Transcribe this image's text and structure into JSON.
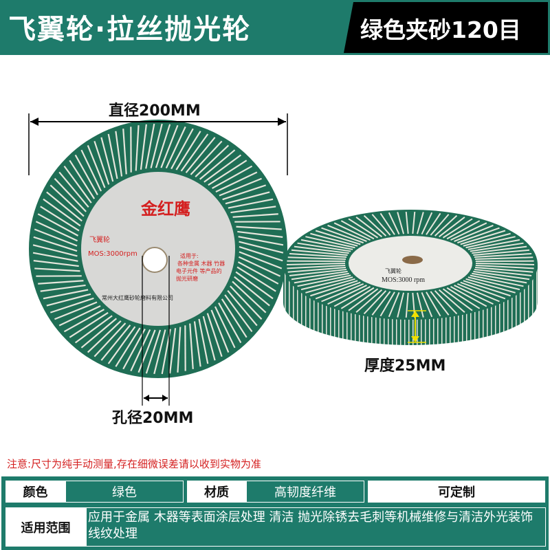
{
  "header": {
    "title": "飞翼轮·拉丝抛光轮",
    "tag": "绿色夹砂120目"
  },
  "dimensions": {
    "diameter": "直径200MM",
    "bore": "孔径20MM",
    "thickness": "厚度25MM"
  },
  "wheel_label": {
    "brand": "金红鹰",
    "name": "飞翼轮",
    "speed": "MOS:3000rpm",
    "usage": [
      "适用于:",
      "各种金属 木器 竹器",
      "电子元件 等产品的",
      "抛光研磨"
    ],
    "company": "常州大红鹰砂轮磨料有限公司"
  },
  "side_label": {
    "name": "飞翼轮",
    "speed": "MOS:3000 rpm"
  },
  "note": "注意:尺寸为纯手动测量,存在细微误差请以收到实物为准",
  "specs": {
    "color_label": "颜色",
    "color_value": "绿色",
    "material_label": "材质",
    "material_value": "高韧度纤维",
    "custom": "可定制",
    "scope_label": "适用范围",
    "scope_value": "应用于金属 木器等表面涂层处理 清洁 抛光除锈去毛刺等机械维修与清洁外光装饰线纹处理"
  },
  "colors": {
    "brand_green": "#1e7b6b",
    "flap_green": "#1f6e55",
    "label_red": "#d42020"
  }
}
